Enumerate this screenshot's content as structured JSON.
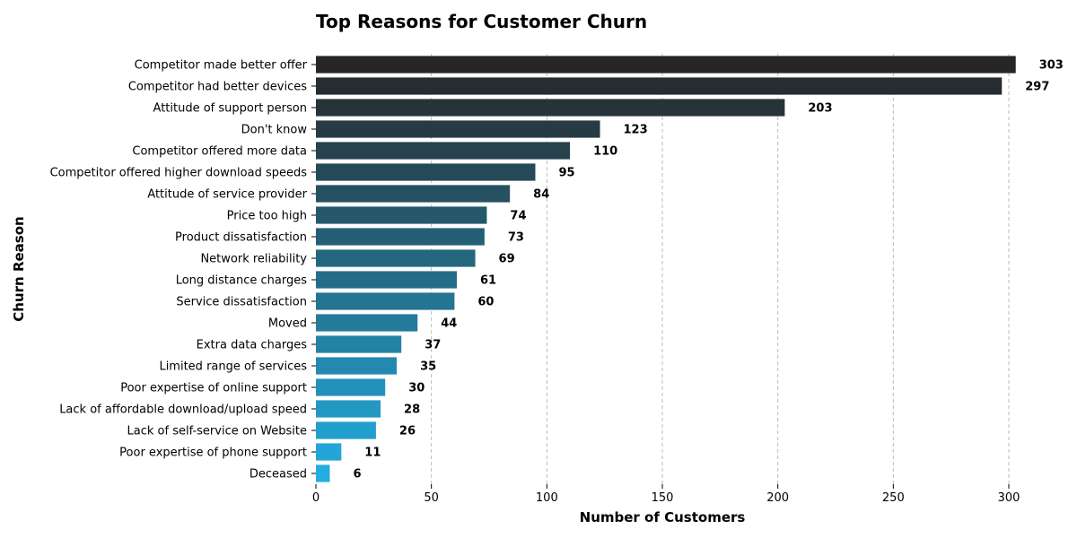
{
  "chart_data": {
    "type": "bar",
    "orientation": "horizontal",
    "title": "Top Reasons for Customer Churn",
    "xlabel": "Number of Customers",
    "ylabel": "Churn Reason",
    "xlim": [
      0,
      315
    ],
    "xticks": [
      0,
      50,
      100,
      150,
      200,
      250,
      300
    ],
    "grid": "x-axis dashed",
    "colors": {
      "start": "#262626",
      "end": "#23ade1"
    },
    "categories": [
      "Competitor made better offer",
      "Competitor had better devices",
      "Attitude of support person",
      "Don't know",
      "Competitor offered more data",
      "Competitor offered higher download speeds",
      "Attitude of service provider",
      "Price too high",
      "Product dissatisfaction",
      "Network reliability",
      "Long distance charges",
      "Service dissatisfaction",
      "Moved",
      "Extra data charges",
      "Limited range of services",
      "Poor expertise of online support",
      "Lack of affordable download/upload speed",
      "Lack of self-service on Website",
      "Poor expertise of phone support",
      "Deceased"
    ],
    "values": [
      303,
      297,
      203,
      123,
      110,
      95,
      84,
      74,
      73,
      69,
      61,
      60,
      44,
      37,
      35,
      30,
      28,
      26,
      11,
      6
    ]
  }
}
